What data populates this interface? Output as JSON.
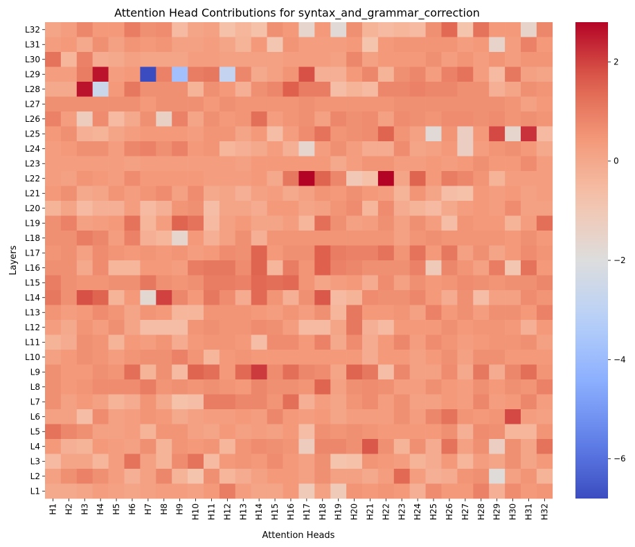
{
  "chart_data": {
    "type": "heatmap",
    "title": "Attention Head Contributions for syntax_and_grammar_correction",
    "xlabel": "Attention Heads",
    "ylabel": "Layers",
    "x_categories": [
      "H1",
      "H2",
      "H3",
      "H4",
      "H5",
      "H6",
      "H7",
      "H8",
      "H9",
      "H10",
      "H11",
      "H12",
      "H13",
      "H14",
      "H15",
      "H16",
      "H17",
      "H18",
      "H19",
      "H20",
      "H21",
      "H22",
      "H23",
      "H24",
      "H25",
      "H26",
      "H27",
      "H28",
      "H29",
      "H30",
      "H31",
      "H32"
    ],
    "y_categories": [
      "L32",
      "L31",
      "L30",
      "L29",
      "L28",
      "L27",
      "L26",
      "L25",
      "L24",
      "L23",
      "L22",
      "L21",
      "L20",
      "L19",
      "L18",
      "L17",
      "L16",
      "L15",
      "L14",
      "L13",
      "L12",
      "L11",
      "L10",
      "L9",
      "L8",
      "L7",
      "L6",
      "L5",
      "L4",
      "L3",
      "L2",
      "L1"
    ],
    "colormap": "coolwarm",
    "vmin": -6.8,
    "vmax": 2.8,
    "colorbar_ticks": [
      2,
      0,
      -2,
      -4,
      -6
    ],
    "values": [
      [
        0.1,
        0.3,
        0.8,
        0.4,
        0.4,
        1.0,
        0.6,
        0.7,
        -0.5,
        0.1,
        0.2,
        -0.7,
        -0.4,
        -0.7,
        0.6,
        0.4,
        -1.6,
        0.4,
        -1.8,
        0.6,
        -0.3,
        -0.5,
        -0.4,
        -0.5,
        0.6,
        1.4,
        -0.8,
        1.2,
        0.4,
        0.4,
        -1.5,
        0.8
      ],
      [
        0.3,
        0.4,
        0.0,
        0.6,
        0.2,
        0.5,
        0.4,
        0.5,
        0.2,
        0.2,
        0.3,
        0.1,
        -0.3,
        0.4,
        -0.9,
        0.5,
        0.3,
        0.3,
        0.3,
        0.4,
        -0.8,
        0.4,
        0.5,
        0.5,
        0.5,
        0.5,
        0.3,
        0.4,
        -1.5,
        0.3,
        0.9,
        0.4
      ],
      [
        1.2,
        -0.4,
        0.9,
        -0.1,
        0.0,
        0.2,
        0.1,
        0.1,
        0.1,
        0.3,
        0.3,
        0.2,
        0.2,
        0.2,
        0.2,
        0.3,
        0.3,
        0.3,
        0.2,
        0.8,
        0.2,
        0.4,
        0.4,
        0.4,
        0.6,
        0.3,
        0.5,
        0.3,
        0.5,
        0.3,
        0.5,
        0.5
      ],
      [
        0.3,
        0.3,
        1.0,
        2.6,
        0.3,
        0.4,
        -6.8,
        0.9,
        -3.8,
        1.0,
        1.1,
        -2.8,
        0.8,
        0.0,
        0.2,
        0.5,
        1.8,
        -0.2,
        -0.2,
        0.4,
        0.8,
        -0.3,
        0.6,
        0.8,
        0.3,
        0.9,
        1.2,
        0.3,
        -0.5,
        1.1,
        0.2,
        0.1
      ],
      [
        0.0,
        0.0,
        2.6,
        -2.6,
        0.4,
        1.1,
        0.6,
        0.6,
        0.6,
        -0.3,
        0.6,
        0.4,
        -0.2,
        0.6,
        0.8,
        1.6,
        1.0,
        1.0,
        -0.6,
        -0.3,
        -0.5,
        0.8,
        0.8,
        0.9,
        0.8,
        0.8,
        0.6,
        0.6,
        -0.2,
        0.1,
        0.6,
        0.5
      ],
      [
        0.6,
        0.6,
        0.6,
        0.6,
        0.6,
        0.6,
        0.4,
        0.6,
        0.6,
        0.6,
        0.4,
        0.6,
        0.5,
        0.5,
        0.5,
        0.5,
        0.6,
        0.5,
        0.5,
        0.5,
        0.5,
        0.5,
        0.6,
        0.6,
        0.6,
        0.6,
        0.6,
        0.6,
        0.6,
        0.5,
        0.2,
        0.4
      ],
      [
        0.9,
        0.3,
        -1.2,
        0.7,
        -0.5,
        0.0,
        0.6,
        -1.4,
        0.9,
        0.1,
        0.6,
        0.4,
        0.5,
        1.3,
        0.3,
        0.5,
        0.6,
        0.2,
        0.8,
        0.6,
        0.7,
        0.2,
        0.7,
        0.6,
        0.5,
        0.7,
        0.7,
        0.6,
        0.7,
        0.5,
        0.6,
        0.5
      ],
      [
        0.4,
        0.6,
        -0.2,
        -0.3,
        0.1,
        0.3,
        0.4,
        0.4,
        0.4,
        0.3,
        0.5,
        0.5,
        0.1,
        0.4,
        -0.6,
        0.3,
        0.7,
        1.2,
        0.5,
        0.6,
        0.7,
        1.5,
        0.5,
        0.2,
        -1.8,
        0.5,
        -1.3,
        0.4,
        1.9,
        -1.6,
        2.2,
        -0.5
      ],
      [
        0.3,
        0.4,
        0.6,
        0.6,
        0.3,
        0.8,
        0.9,
        0.6,
        0.9,
        0.4,
        0.5,
        -0.4,
        -0.2,
        0.0,
        0.3,
        -0.2,
        -1.6,
        0.3,
        0.6,
        0.3,
        -0.1,
        -0.1,
        0.7,
        0.1,
        0.2,
        0.4,
        -1.3,
        0.3,
        0.5,
        0.6,
        0.4,
        0.0
      ],
      [
        0.3,
        0.3,
        0.3,
        0.3,
        0.3,
        0.2,
        0.3,
        0.3,
        0.3,
        0.3,
        0.3,
        0.3,
        0.2,
        0.4,
        0.4,
        0.4,
        0.4,
        0.4,
        0.0,
        0.3,
        0.5,
        0.5,
        0.3,
        0.3,
        0.4,
        0.3,
        0.4,
        0.6,
        0.4,
        0.4,
        0.7,
        0.3
      ],
      [
        0.3,
        0.2,
        0.5,
        0.4,
        0.3,
        0.7,
        0.4,
        0.4,
        0.4,
        0.4,
        0.3,
        0.3,
        0.3,
        0.4,
        0.0,
        1.1,
        2.8,
        1.5,
        0.8,
        -1.0,
        -0.7,
        2.8,
        0.1,
        1.5,
        0.4,
        1.0,
        0.8,
        0.5,
        -0.3,
        0.3,
        0.3,
        0.3
      ],
      [
        0.4,
        0.6,
        0.0,
        0.1,
        0.5,
        0.3,
        0.5,
        0.7,
        0.2,
        0.7,
        0.0,
        0.1,
        -0.2,
        0.2,
        0.3,
        0.0,
        0.2,
        0.5,
        0.4,
        0.6,
        0.4,
        0.3,
        -0.3,
        0.5,
        0.1,
        -0.6,
        -0.7,
        0.4,
        0.3,
        0.4,
        0.2,
        0.3
      ],
      [
        -0.3,
        0.1,
        -0.5,
        -0.2,
        -0.2,
        0.3,
        -0.5,
        -0.2,
        0.5,
        0.6,
        -0.6,
        0.1,
        0.1,
        -0.1,
        0.4,
        0.4,
        0.1,
        0.2,
        0.5,
        0.7,
        -0.4,
        0.7,
        -0.1,
        -0.3,
        -0.5,
        0.0,
        0.3,
        0.4,
        0.3,
        0.7,
        0.2,
        0.2
      ],
      [
        0.6,
        0.9,
        0.2,
        0.3,
        0.4,
        1.2,
        -0.4,
        0.3,
        1.5,
        1.2,
        -0.5,
        0.2,
        0.4,
        0.1,
        0.1,
        0.3,
        -0.4,
        1.3,
        0.6,
        0.2,
        0.3,
        0.6,
        0.2,
        0.6,
        0.3,
        -0.6,
        0.5,
        0.4,
        0.4,
        -0.3,
        0.3,
        1.3
      ],
      [
        0.6,
        0.6,
        1.0,
        0.8,
        0.3,
        0.9,
        -0.2,
        -0.4,
        -1.6,
        0.4,
        -0.2,
        0.2,
        0.6,
        -0.2,
        0.5,
        0.5,
        0.5,
        0.5,
        0.5,
        0.5,
        0.5,
        0.5,
        0.2,
        0.5,
        0.6,
        0.5,
        0.5,
        0.5,
        0.5,
        0.4,
        0.6,
        0.4
      ],
      [
        0.5,
        0.6,
        0.2,
        0.7,
        0.5,
        0.4,
        0.5,
        0.4,
        0.5,
        0.3,
        0.4,
        0.7,
        0.6,
        1.5,
        0.4,
        0.6,
        0.6,
        1.6,
        1.0,
        0.9,
        0.9,
        1.2,
        0.5,
        1.2,
        0.4,
        1.1,
        0.2,
        0.6,
        0.1,
        0.4,
        0.7,
        0.5
      ],
      [
        0.6,
        0.6,
        0.0,
        0.7,
        -0.4,
        -0.4,
        0.4,
        0.4,
        0.3,
        1.0,
        1.1,
        1.1,
        0.7,
        1.5,
        -0.4,
        1.0,
        0.5,
        1.6,
        0.9,
        0.8,
        0.6,
        0.6,
        0.6,
        0.9,
        -1.1,
        0.8,
        0.5,
        0.2,
        1.0,
        -0.9,
        1.2,
        0.4
      ],
      [
        1.0,
        0.6,
        0.5,
        0.5,
        0.6,
        0.6,
        1.1,
        0.6,
        0.5,
        0.6,
        1.0,
        1.0,
        0.9,
        1.4,
        1.3,
        1.4,
        0.5,
        0.1,
        0.3,
        0.4,
        -0.1,
        0.7,
        0.2,
        0.6,
        0.4,
        0.5,
        0.7,
        0.6,
        0.5,
        0.6,
        0.6,
        0.8
      ],
      [
        1.1,
        0.6,
        1.8,
        1.5,
        -0.3,
        0.4,
        -1.7,
        2.0,
        0.8,
        0.4,
        1.1,
        0.7,
        -0.1,
        1.4,
        0.5,
        -0.2,
        0.6,
        1.7,
        -0.5,
        -0.3,
        0.7,
        0.6,
        0.6,
        0.8,
        0.4,
        -0.1,
        0.6,
        -0.6,
        0.2,
        0.2,
        0.7,
        0.5
      ],
      [
        0.5,
        0.3,
        0.4,
        0.7,
        0.5,
        0.1,
        0.5,
        0.4,
        -0.4,
        -0.4,
        0.5,
        0.5,
        0.5,
        0.4,
        0.3,
        0.5,
        0.3,
        0.6,
        -0.4,
        1.1,
        0.4,
        0.4,
        0.5,
        0.2,
        0.9,
        0.4,
        0.6,
        0.3,
        0.6,
        0.6,
        0.4,
        0.9
      ],
      [
        0.3,
        0.0,
        0.5,
        0.3,
        0.6,
        0.1,
        -0.6,
        -0.6,
        -0.6,
        0.5,
        0.6,
        0.5,
        0.5,
        0.7,
        0.6,
        0.3,
        -0.5,
        -0.5,
        0.1,
        1.1,
        -0.2,
        -0.5,
        0.4,
        0.4,
        0.4,
        0.6,
        0.4,
        0.5,
        0.5,
        0.4,
        -0.2,
        0.4
      ],
      [
        -0.3,
        -0.1,
        0.6,
        0.5,
        -0.3,
        0.4,
        0.3,
        0.5,
        -0.1,
        0.4,
        0.5,
        0.5,
        0.4,
        -0.6,
        0.7,
        0.7,
        0.4,
        0.9,
        0.0,
        0.7,
        -0.1,
        0.4,
        0.8,
        0.3,
        0.7,
        0.5,
        0.3,
        0.4,
        0.5,
        0.5,
        0.6,
        0.2
      ],
      [
        0.2,
        0.4,
        0.6,
        0.5,
        0.3,
        0.5,
        0.6,
        0.6,
        0.9,
        0.5,
        -0.4,
        0.4,
        0.5,
        0.4,
        0.4,
        0.4,
        0.4,
        0.4,
        0.4,
        0.4,
        -0.1,
        0.4,
        0.4,
        0.2,
        0.4,
        0.6,
        0.2,
        0.6,
        0.6,
        0.4,
        0.4,
        0.4
      ],
      [
        0.6,
        0.4,
        0.4,
        0.6,
        0.5,
        1.3,
        -0.3,
        0.6,
        -0.5,
        1.5,
        1.3,
        0.4,
        1.4,
        2.1,
        0.7,
        1.3,
        0.8,
        0.7,
        0.1,
        1.5,
        1.1,
        -0.6,
        0.8,
        0.2,
        0.2,
        0.7,
        0.0,
        1.1,
        -0.1,
        0.8,
        1.3,
        0.5
      ],
      [
        0.6,
        0.4,
        0.5,
        0.7,
        0.7,
        0.7,
        1.0,
        0.5,
        0.6,
        0.5,
        0.6,
        0.5,
        0.4,
        0.8,
        0.6,
        0.6,
        0.5,
        1.5,
        0.2,
        0.6,
        0.7,
        0.6,
        0.3,
        0.3,
        0.6,
        0.4,
        0.3,
        0.6,
        0.4,
        0.6,
        0.5,
        0.9
      ],
      [
        0.6,
        0.2,
        0.4,
        0.2,
        -0.3,
        -0.1,
        0.5,
        0.0,
        -0.7,
        -0.6,
        1.0,
        1.0,
        0.8,
        0.8,
        0.5,
        1.3,
        -0.2,
        0.3,
        0.1,
        0.5,
        0.7,
        0.3,
        0.6,
        0.2,
        0.2,
        0.4,
        0.3,
        0.8,
        0.3,
        0.4,
        0.8,
        0.3
      ],
      [
        0.2,
        0.2,
        -0.6,
        0.7,
        0.2,
        0.3,
        0.5,
        0.4,
        0.0,
        0.2,
        0.3,
        0.3,
        0.4,
        0.3,
        0.8,
        0.4,
        0.3,
        0.4,
        0.1,
        0.3,
        0.3,
        0.3,
        0.6,
        0.3,
        0.8,
        1.2,
        0.5,
        0.4,
        0.5,
        1.9,
        0.3,
        0.2
      ],
      [
        1.2,
        0.8,
        0.6,
        0.2,
        0.2,
        0.3,
        -0.3,
        0.5,
        0.5,
        0.2,
        0.1,
        0.4,
        0.2,
        0.3,
        0.2,
        0.4,
        -0.6,
        0.6,
        0.5,
        0.6,
        0.5,
        0.4,
        0.4,
        0.4,
        0.4,
        0.6,
        -0.2,
        0.7,
        0.6,
        -0.4,
        -0.4,
        0.5
      ],
      [
        0.4,
        -0.2,
        -0.3,
        0.4,
        0.3,
        0.2,
        0.6,
        -0.3,
        0.5,
        0.4,
        0.5,
        -0.4,
        0.5,
        0.7,
        0.6,
        0.5,
        -1.2,
        0.8,
        0.8,
        0.6,
        1.7,
        0.6,
        -0.3,
        0.6,
        -0.1,
        1.2,
        0.2,
        0.6,
        -1.3,
        0.6,
        0.1,
        1.2
      ],
      [
        -0.5,
        0.1,
        0.1,
        -0.4,
        0.3,
        1.2,
        0.2,
        -0.3,
        0.7,
        1.2,
        -0.5,
        0.4,
        0.5,
        0.4,
        0.7,
        0.4,
        0.2,
        0.6,
        -0.8,
        -0.7,
        0.5,
        0.4,
        0.3,
        -0.3,
        -0.1,
        0.4,
        -0.4,
        0.3,
        0.1,
        0.6,
        0.1,
        0.4
      ],
      [
        0.2,
        0.6,
        0.9,
        0.6,
        0.3,
        -0.2,
        0.2,
        0.8,
        -0.3,
        -0.8,
        0.6,
        -0.4,
        -0.1,
        0.2,
        0.4,
        0.4,
        0.2,
        0.6,
        0.2,
        0.2,
        0.0,
        0.3,
        1.4,
        0.3,
        -0.2,
        -0.1,
        0.5,
        0.6,
        -1.9,
        0.2,
        0.5,
        -0.3
      ],
      [
        0.0,
        0.0,
        0.1,
        0.3,
        0.2,
        0.1,
        0.2,
        0.3,
        0.3,
        0.2,
        0.4,
        1.0,
        0.3,
        0.1,
        0.1,
        0.4,
        -1.1,
        0.2,
        -1.1,
        0.5,
        0.4,
        0.5,
        0.4,
        -0.2,
        0.7,
        0.4,
        0.4,
        0.9,
        -0.2,
        0.7,
        0.4,
        0.5
      ]
    ]
  }
}
